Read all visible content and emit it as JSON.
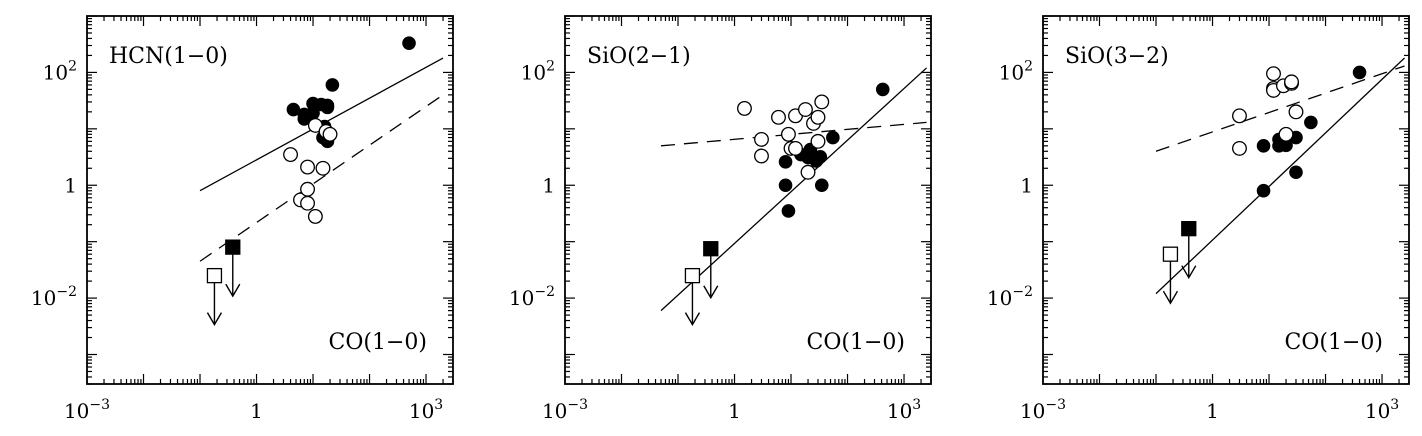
{
  "chart_data": [
    {
      "type": "scatter",
      "title": "",
      "xlabel": "",
      "ylabel": "",
      "xscale": "log",
      "yscale": "log",
      "xlim": [
        0.001,
        3000
      ],
      "ylim": [
        0.0003,
        1000
      ],
      "x_ticks": [
        {
          "value": 0.001,
          "base": "10",
          "exp": "−3"
        },
        {
          "value": 1,
          "base": "1",
          "exp": ""
        },
        {
          "value": 1000,
          "base": "10",
          "exp": "3"
        }
      ],
      "y_ticks": [
        {
          "value": 0.01,
          "base": "10",
          "exp": "−2"
        },
        {
          "value": 1,
          "base": "1",
          "exp": ""
        },
        {
          "value": 100,
          "base": "10",
          "exp": "2"
        }
      ],
      "label_top_left": "HCN(1−0)",
      "label_bottom_right": "CO(1−0)",
      "series": [
        {
          "marker": "filled-circle",
          "points": [
            [
              4.5,
              22
            ],
            [
              7,
              18
            ],
            [
              7,
              15
            ],
            [
              10,
              28
            ],
            [
              10,
              19
            ],
            [
              14,
              27
            ],
            [
              18,
              26
            ],
            [
              18,
              24
            ],
            [
              16,
              11
            ],
            [
              15,
              7
            ],
            [
              18,
              6
            ],
            [
              22,
              60
            ],
            [
              500,
              330
            ]
          ]
        },
        {
          "marker": "open-circle",
          "points": [
            [
              4,
              3.5
            ],
            [
              6,
              0.55
            ],
            [
              8,
              0.85
            ],
            [
              8,
              0.48
            ],
            [
              8,
              2.1
            ],
            [
              11,
              11.5
            ],
            [
              11,
              0.28
            ],
            [
              17,
              9
            ],
            [
              20,
              8
            ],
            [
              15,
              2
            ]
          ]
        },
        {
          "marker": "filled-square-upper-limit",
          "points": [
            [
              0.38,
              0.08
            ]
          ]
        },
        {
          "marker": "open-square-upper-limit",
          "points": [
            [
              0.18,
              0.025
            ]
          ]
        }
      ],
      "fits": [
        {
          "style": "solid",
          "from": [
            0.1,
            0.8
          ],
          "to": [
            2000,
            180
          ]
        },
        {
          "style": "dashed",
          "from": [
            0.1,
            0.045
          ],
          "to": [
            2000,
            40
          ]
        }
      ]
    },
    {
      "type": "scatter",
      "title": "",
      "xlabel": "",
      "ylabel": "",
      "xscale": "log",
      "yscale": "log",
      "xlim": [
        0.001,
        3000
      ],
      "ylim": [
        0.0003,
        1000
      ],
      "x_ticks": [
        {
          "value": 0.001,
          "base": "10",
          "exp": "−3"
        },
        {
          "value": 1,
          "base": "1",
          "exp": ""
        },
        {
          "value": 1000,
          "base": "10",
          "exp": "3"
        }
      ],
      "y_ticks": [
        {
          "value": 0.01,
          "base": "10",
          "exp": "−2"
        },
        {
          "value": 1,
          "base": "1",
          "exp": ""
        },
        {
          "value": 100,
          "base": "10",
          "exp": "2"
        }
      ],
      "label_top_left": "SiO(2−1)",
      "label_bottom_right": "CO(1−0)",
      "series": [
        {
          "marker": "filled-circle",
          "points": [
            [
              8,
              2.6
            ],
            [
              8,
              1
            ],
            [
              9,
              0.35
            ],
            [
              15,
              3.5
            ],
            [
              20,
              3.1
            ],
            [
              22,
              4.3
            ],
            [
              28,
              2.7
            ],
            [
              33,
              3.2
            ],
            [
              35,
              1
            ],
            [
              55,
              7
            ],
            [
              420,
              50
            ]
          ]
        },
        {
          "marker": "open-circle",
          "points": [
            [
              1.5,
              23
            ],
            [
              3,
              6.5
            ],
            [
              3,
              3.3
            ],
            [
              6,
              16
            ],
            [
              9,
              8
            ],
            [
              10,
              4.5
            ],
            [
              12,
              17
            ],
            [
              12,
              4.5
            ],
            [
              18,
              22
            ],
            [
              25,
              12.5
            ],
            [
              30,
              16
            ],
            [
              30,
              6
            ],
            [
              35,
              30
            ],
            [
              20,
              1.7
            ]
          ]
        },
        {
          "marker": "filled-square-upper-limit",
          "points": [
            [
              0.38,
              0.075
            ]
          ]
        },
        {
          "marker": "open-square-upper-limit",
          "points": [
            [
              0.18,
              0.025
            ]
          ]
        }
      ],
      "fits": [
        {
          "style": "solid",
          "from": [
            0.05,
            0.006
          ],
          "to": [
            2500,
            120
          ]
        },
        {
          "style": "dashed",
          "from": [
            0.05,
            5
          ],
          "to": [
            2500,
            13
          ]
        }
      ]
    },
    {
      "type": "scatter",
      "title": "",
      "xlabel": "",
      "ylabel": "",
      "xscale": "log",
      "yscale": "log",
      "xlim": [
        0.001,
        3000
      ],
      "ylim": [
        0.0003,
        1000
      ],
      "x_ticks": [
        {
          "value": 0.001,
          "base": "10",
          "exp": "−3"
        },
        {
          "value": 1,
          "base": "1",
          "exp": ""
        },
        {
          "value": 1000,
          "base": "10",
          "exp": "3"
        }
      ],
      "y_ticks": [
        {
          "value": 0.01,
          "base": "10",
          "exp": "−2"
        },
        {
          "value": 1,
          "base": "1",
          "exp": ""
        },
        {
          "value": 100,
          "base": "10",
          "exp": "2"
        }
      ],
      "label_top_left": "SiO(3−2)",
      "label_bottom_right": "CO(1−0)",
      "series": [
        {
          "marker": "filled-circle",
          "points": [
            [
              8,
              5
            ],
            [
              8,
              0.8
            ],
            [
              15,
              5
            ],
            [
              15,
              6.5
            ],
            [
              20,
              5.1
            ],
            [
              30,
              7
            ],
            [
              30,
              1.7
            ],
            [
              55,
              13
            ],
            [
              400,
              100
            ]
          ]
        },
        {
          "marker": "open-circle",
          "points": [
            [
              3,
              17
            ],
            [
              3,
              4.5
            ],
            [
              12,
              95
            ],
            [
              12,
              52
            ],
            [
              12,
              48
            ],
            [
              18,
              58
            ],
            [
              25,
              64
            ],
            [
              25,
              68
            ],
            [
              30,
              20
            ],
            [
              20,
              8
            ]
          ]
        },
        {
          "marker": "filled-square-upper-limit",
          "points": [
            [
              0.38,
              0.17
            ]
          ]
        },
        {
          "marker": "open-square-upper-limit",
          "points": [
            [
              0.18,
              0.06
            ]
          ]
        }
      ],
      "fits": [
        {
          "style": "solid",
          "from": [
            0.1,
            0.012
          ],
          "to": [
            2500,
            180
          ]
        },
        {
          "style": "dashed",
          "from": [
            0.1,
            4
          ],
          "to": [
            2500,
            130
          ]
        }
      ]
    }
  ]
}
